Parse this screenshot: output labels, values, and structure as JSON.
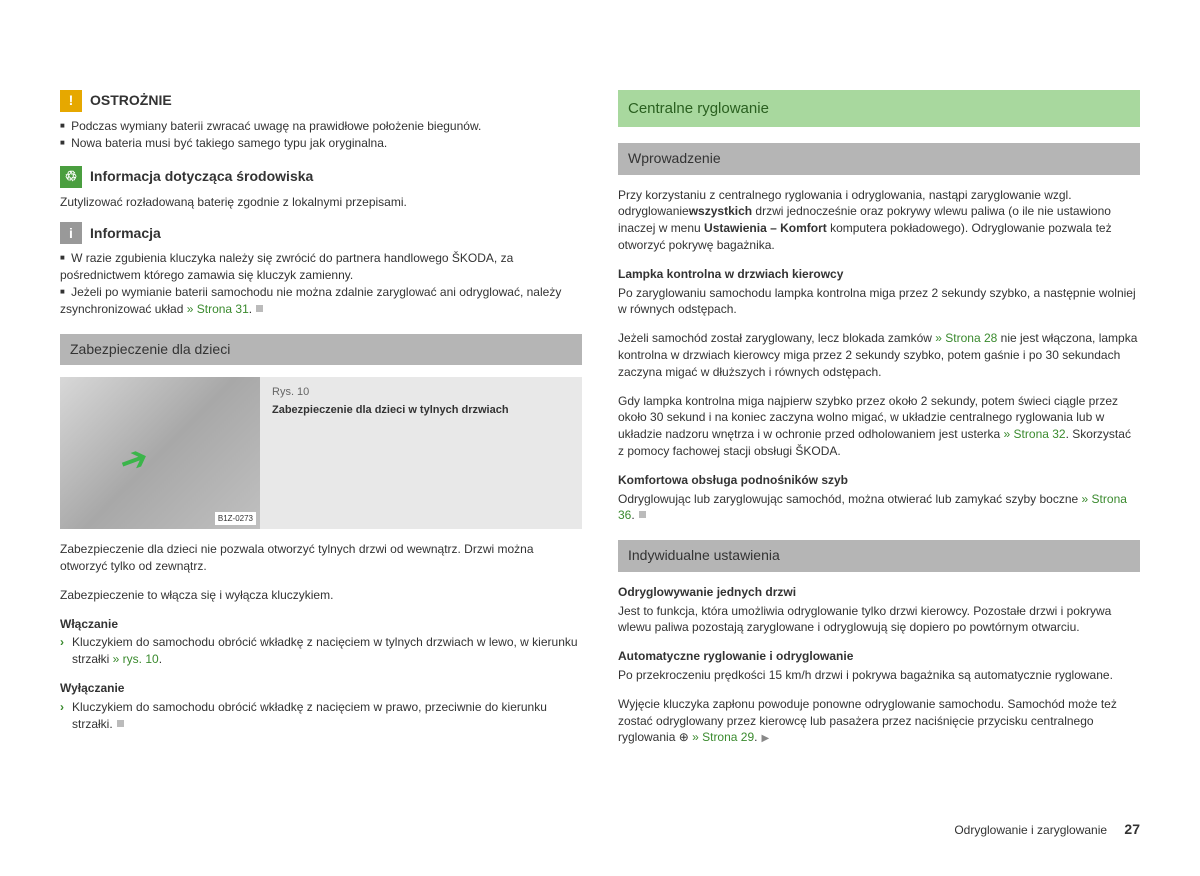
{
  "left": {
    "caution": {
      "title": "OSTROŻNIE",
      "items": [
        "Podczas wymiany baterii zwracać uwagę na prawidłowe położenie biegunów.",
        "Nowa bateria musi być takiego samego typu jak oryginalna."
      ]
    },
    "eco": {
      "title": "Informacja dotycząca środowiska",
      "text": "Zutylizować rozładowaną baterię zgodnie z lokalnymi przepisami."
    },
    "info": {
      "title": "Informacja",
      "items": [
        "W razie zgubienia kluczyka należy się zwrócić do partnera handlowego ŠKODA, za pośrednictwem którego zamawia się kluczyk zamienny.",
        "Jeżeli po wymianie baterii samochodu nie można zdalnie zaryglować ani odryglować, należy zsynchronizować układ "
      ],
      "link": "» Strona 31"
    },
    "childlock": {
      "title": "Zabezpieczenie dla dzieci",
      "fig_label": "B1Z-0273",
      "fig_num": "Rys. 10",
      "fig_caption": "Zabezpieczenie dla dzieci w tylnych drzwiach",
      "p1": "Zabezpieczenie dla dzieci nie pozwala otworzyć tylnych drzwi od wewnątrz. Drzwi można otworzyć tylko od zewnątrz.",
      "p2": "Zabezpieczenie to włącza się i wyłącza kluczykiem.",
      "on_title": "Włączanie",
      "on_step": "Kluczykiem do samochodu obrócić wkładkę z nacięciem w tylnych drzwiach w lewo, w kierunku strzałki ",
      "on_link": "» rys. 10",
      "off_title": "Wyłączanie",
      "off_step": "Kluczykiem do samochodu obrócić wkładkę z nacięciem w prawo, przeciwnie do kierunku strzałki."
    }
  },
  "right": {
    "main_title": "Centralne ryglowanie",
    "intro": {
      "title": "Wprowadzenie",
      "p1a": "Przy korzystaniu z centralnego ryglowania i odryglowania, nastąpi zaryglowanie wzgl. odryglowanie",
      "p1b": "wszystkich",
      "p1c": " drzwi jednocześnie oraz pokrywy wlewu paliwa (o ile nie ustawiono inaczej w menu ",
      "p1d": "Ustawienia – Komfort",
      "p1e": " komputera pokładowego). Odryglowanie pozwala też otworzyć pokrywę bagażnika.",
      "lamp_title": "Lampka kontrolna w drzwiach kierowcy",
      "p2": "Po zaryglowaniu samochodu lampka kontrolna miga przez 2 sekundy szybko, a następnie wolniej w równych odstępach.",
      "p3a": "Jeżeli samochód został zaryglowany, lecz blokada zamków ",
      "p3link": "» Strona 28",
      "p3b": " nie jest włączona, lampka kontrolna w drzwiach kierowcy miga przez 2 sekundy szybko, potem gaśnie i po 30 sekundach zaczyna migać w dłuższych i równych odstępach.",
      "p4a": "Gdy lampka kontrolna miga najpierw szybko przez około 2 sekundy, potem świeci ciągle przez około 30 sekund i na koniec zaczyna wolno migać, w układzie centralnego ryglowania lub w układzie nadzoru wnętrza i w ochronie przed odholowaniem jest usterka ",
      "p4link": "» Strona 32",
      "p4b": ". Skorzystać z pomocy fachowej stacji obsługi ŠKODA.",
      "comfort_title": "Komfortowa obsługa podnośników szyb",
      "p5a": "Odryglowując lub zaryglowując samochód, można otwierać lub zamykać szyby boczne ",
      "p5link": "» Strona 36"
    },
    "individual": {
      "title": "Indywidualne ustawienia",
      "single_title": "Odryglowywanie jednych drzwi",
      "p1": "Jest to funkcja, która umożliwia odryglowanie tylko drzwi kierowcy. Pozostałe drzwi i pokrywa wlewu paliwa pozostają zaryglowane i odryglowują się dopiero po powtórnym otwarciu.",
      "auto_title": "Automatyczne ryglowanie i odryglowanie",
      "p2": "Po przekroczeniu prędkości 15 km/h drzwi i pokrywa bagażnika są automatycznie ryglowane.",
      "p3a": "Wyjęcie kluczyka zapłonu powoduje ponowne odryglowanie samochodu. Samochód może też zostać odryglowany przez kierowcę lub pasażera przez naciśnięcie przycisku centralnego ryglowania ⊕ ",
      "p3link": "» Strona 29"
    }
  },
  "footer": {
    "section": "Odryglowanie i zaryglowanie",
    "page": "27"
  }
}
